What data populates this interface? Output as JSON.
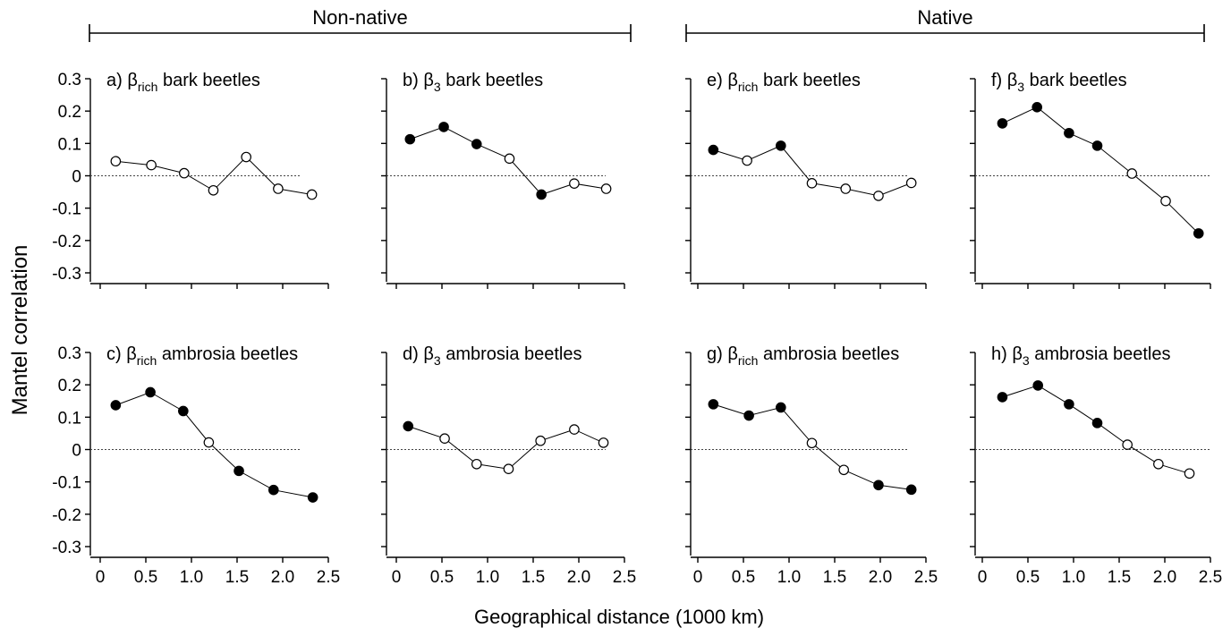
{
  "figure": {
    "groups": [
      {
        "label": "Non-native",
        "panels": [
          "a",
          "b",
          "c",
          "d"
        ]
      },
      {
        "label": "Native",
        "panels": [
          "e",
          "f",
          "g",
          "h"
        ]
      }
    ],
    "ylabel": "Mantel correlation",
    "xlabel": "Geographical distance (1000 km)",
    "y_ticks": [
      "0.3",
      "0.2",
      "0.1",
      "0",
      "-0.1",
      "-0.2",
      "-0.3"
    ],
    "x_ticks": [
      "0",
      "0.5",
      "1.0",
      "1.5",
      "2.0",
      "2.5"
    ],
    "reference_line": "dotted at y = 0",
    "marker_legend": "filled = significant, open = not significant"
  },
  "chart_data": [
    {
      "id": "a",
      "type": "line",
      "title": {
        "prefix": "a) β",
        "sub": "rich",
        "suffix": " bark beetles"
      },
      "xlim": [
        0,
        2.5
      ],
      "ylim": [
        -0.3,
        0.3
      ],
      "x": [
        0.17,
        0.56,
        0.92,
        1.24,
        1.6,
        1.95,
        2.32
      ],
      "y": [
        0.045,
        0.033,
        0.008,
        -0.045,
        0.058,
        -0.04,
        -0.058
      ],
      "filled": [
        false,
        false,
        false,
        false,
        false,
        false,
        false
      ]
    },
    {
      "id": "b",
      "type": "line",
      "title": {
        "prefix": "b) β",
        "sub": "3",
        "suffix": " bark beetles"
      },
      "xlim": [
        0,
        2.5
      ],
      "ylim": [
        -0.3,
        0.3
      ],
      "x": [
        0.15,
        0.52,
        0.88,
        1.24,
        1.59,
        1.95,
        2.3
      ],
      "y": [
        0.113,
        0.151,
        0.098,
        0.053,
        -0.058,
        -0.024,
        -0.04
      ],
      "filled": [
        true,
        true,
        true,
        false,
        true,
        false,
        false
      ]
    },
    {
      "id": "c",
      "type": "line",
      "title": {
        "prefix": "c) β",
        "sub": "rich",
        "suffix": " ambrosia beetles"
      },
      "xlim": [
        0,
        2.5
      ],
      "ylim": [
        -0.3,
        0.3
      ],
      "x": [
        0.17,
        0.55,
        0.91,
        1.19,
        1.52,
        1.9,
        2.33
      ],
      "y": [
        0.137,
        0.177,
        0.119,
        0.022,
        -0.066,
        -0.125,
        -0.148
      ],
      "filled": [
        true,
        true,
        true,
        false,
        true,
        true,
        true
      ]
    },
    {
      "id": "d",
      "type": "line",
      "title": {
        "prefix": "d) β",
        "sub": "3",
        "suffix": " ambrosia beetles"
      },
      "xlim": [
        0,
        2.5
      ],
      "ylim": [
        -0.3,
        0.3
      ],
      "x": [
        0.13,
        0.53,
        0.88,
        1.23,
        1.58,
        1.95,
        2.27
      ],
      "y": [
        0.072,
        0.034,
        -0.045,
        -0.06,
        0.027,
        0.062,
        0.021
      ],
      "filled": [
        true,
        false,
        false,
        false,
        false,
        false,
        false
      ]
    },
    {
      "id": "e",
      "type": "line",
      "title": {
        "prefix": "e) β",
        "sub": "rich",
        "suffix": " bark beetles"
      },
      "xlim": [
        0,
        2.5
      ],
      "ylim": [
        -0.3,
        0.3
      ],
      "x": [
        0.17,
        0.54,
        0.91,
        1.25,
        1.62,
        1.98,
        2.34
      ],
      "y": [
        0.08,
        0.047,
        0.093,
        -0.023,
        -0.04,
        -0.062,
        -0.022
      ],
      "filled": [
        true,
        false,
        true,
        false,
        false,
        false,
        false
      ]
    },
    {
      "id": "f",
      "type": "line",
      "title": {
        "prefix": "f) β",
        "sub": "3",
        "suffix": " bark beetles"
      },
      "xlim": [
        0,
        2.5
      ],
      "ylim": [
        -0.3,
        0.3
      ],
      "x": [
        0.22,
        0.6,
        0.95,
        1.26,
        1.64,
        2.01,
        2.37
      ],
      "y": [
        0.162,
        0.212,
        0.132,
        0.093,
        0.007,
        -0.078,
        -0.178
      ],
      "filled": [
        true,
        true,
        true,
        true,
        false,
        false,
        true
      ]
    },
    {
      "id": "g",
      "type": "line",
      "title": {
        "prefix": "g) β",
        "sub": "rich",
        "suffix": " ambrosia beetles"
      },
      "xlim": [
        0,
        2.5
      ],
      "ylim": [
        -0.3,
        0.3
      ],
      "x": [
        0.17,
        0.56,
        0.91,
        1.25,
        1.6,
        1.98,
        2.34
      ],
      "y": [
        0.14,
        0.105,
        0.13,
        0.02,
        -0.063,
        -0.11,
        -0.124
      ],
      "filled": [
        true,
        true,
        true,
        false,
        false,
        true,
        true
      ]
    },
    {
      "id": "h",
      "type": "line",
      "title": {
        "prefix": "h) β",
        "sub": "3",
        "suffix": " ambrosia beetles"
      },
      "xlim": [
        0,
        2.5
      ],
      "ylim": [
        -0.3,
        0.3
      ],
      "x": [
        0.22,
        0.61,
        0.95,
        1.26,
        1.59,
        1.93,
        2.27
      ],
      "y": [
        0.162,
        0.198,
        0.14,
        0.082,
        0.015,
        -0.045,
        -0.074
      ],
      "filled": [
        true,
        true,
        true,
        true,
        false,
        false,
        false
      ]
    }
  ]
}
